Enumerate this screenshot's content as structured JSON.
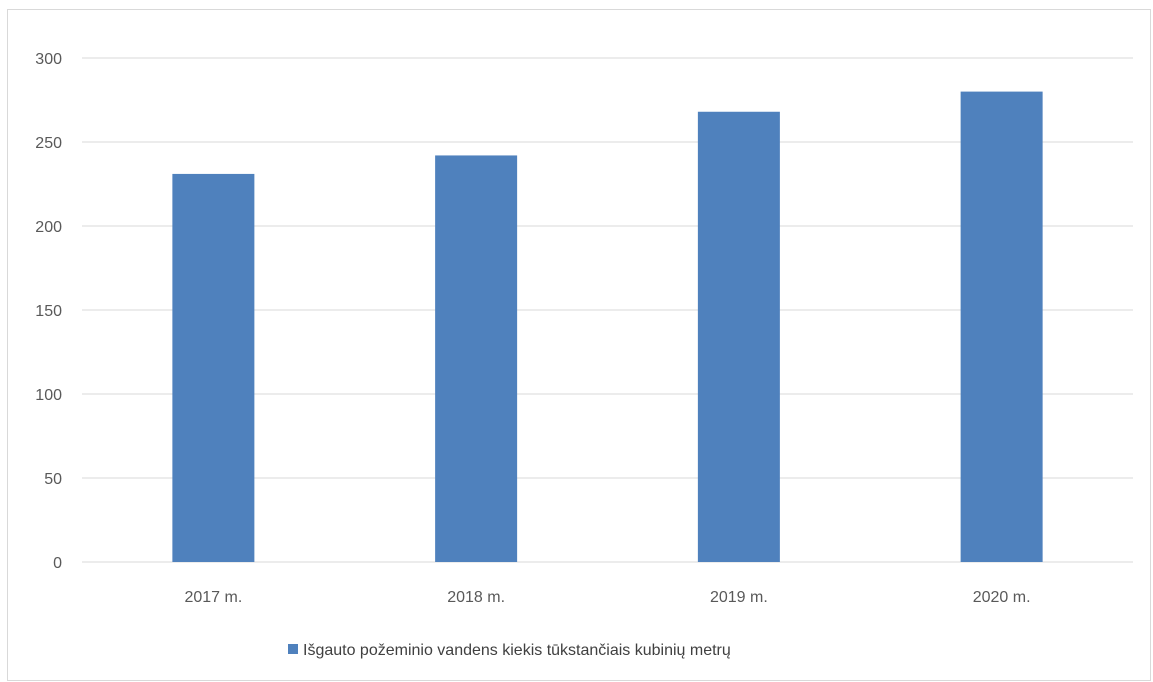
{
  "chart_data": {
    "type": "bar",
    "categories": [
      "2017 m.",
      "2018 m.",
      "2019 m.",
      "2020 m."
    ],
    "series": [
      {
        "name": "Išgauto požeminio vandens kiekis tūkstančiais kubinių metrų",
        "values": [
          231,
          242,
          268,
          280
        ],
        "color": "#4f81bd"
      }
    ],
    "y_ticks": [
      0,
      50,
      100,
      150,
      200,
      250,
      300
    ],
    "ylim": [
      0,
      300
    ],
    "grid": true,
    "legend_position": "bottom",
    "gridline_color": "#d9d9d9",
    "axis_text_color": "#595959"
  }
}
